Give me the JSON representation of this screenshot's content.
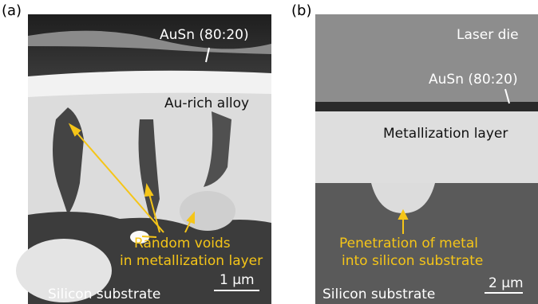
{
  "panels": [
    {
      "label": "(a)",
      "annotations": [
        "AuSn (80:20)",
        "Au-rich alloy",
        "Random voids",
        "in metallization layer",
        "Silicon substrate"
      ],
      "scale_bar": "1 µm"
    },
    {
      "label": "(b)",
      "annotations": [
        "Laser die",
        "AuSn (80:20)",
        "Metallization layer",
        "Penetration of metal",
        "into silicon substrate",
        "Silicon substrate"
      ],
      "scale_bar": "2 µm"
    }
  ]
}
